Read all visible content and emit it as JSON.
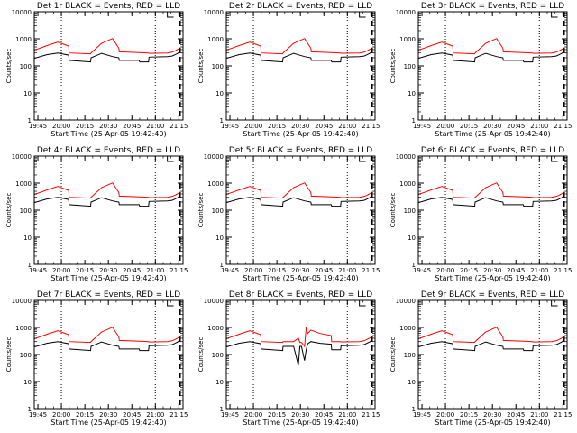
{
  "common": {
    "xlabel": "Start Time (25-Apr-05 19:42:40)",
    "ylabel": "Counts/sec",
    "xticks": [
      "19:45",
      "20:00",
      "20:15",
      "20:30",
      "20:45",
      "21:00",
      "21:15"
    ],
    "yticks": [
      "1",
      "10",
      "100",
      "1000",
      "10000"
    ],
    "colors": {
      "events": "#000000",
      "lld": "#ff0000"
    }
  },
  "chart_data": [
    {
      "type": "line",
      "title": "Det 1r BLACK = Events, RED = LLD",
      "xlabel": "Start Time (25-Apr-05 19:42:40)",
      "ylabel": "Counts/sec",
      "yscale": "log",
      "ylim": [
        1,
        10000
      ],
      "xlim_minutes": [
        0,
        95
      ],
      "x_minutes": [
        0,
        8,
        15,
        22,
        22.3,
        36,
        36.3,
        43,
        50,
        54,
        54.3,
        67,
        67.3,
        73,
        73.3,
        85,
        88,
        90,
        92,
        93
      ],
      "series": [
        {
          "name": "BLACK = Events",
          "values": [
            190,
            260,
            300,
            250,
            160,
            140,
            200,
            290,
            220,
            200,
            160,
            160,
            140,
            140,
            210,
            220,
            230,
            260,
            300,
            370
          ]
        },
        {
          "name": "RED = LLD",
          "values": [
            380,
            560,
            750,
            540,
            300,
            280,
            300,
            680,
            1020,
            450,
            330,
            310,
            310,
            300,
            290,
            300,
            320,
            360,
            420,
            480
          ]
        }
      ]
    },
    {
      "type": "line",
      "title": "Det 2r BLACK = Events, RED = LLD",
      "xlabel": "Start Time (25-Apr-05 19:42:40)",
      "ylabel": "Counts/sec",
      "yscale": "log",
      "ylim": [
        1,
        10000
      ],
      "xlim_minutes": [
        0,
        95
      ],
      "x_minutes": [
        0,
        8,
        15,
        22,
        22.3,
        36,
        36.3,
        43,
        50,
        54,
        54.3,
        67,
        67.3,
        73,
        73.3,
        85,
        88,
        90,
        92,
        93
      ],
      "series": [
        {
          "name": "BLACK = Events",
          "values": [
            190,
            260,
            300,
            250,
            160,
            140,
            200,
            290,
            220,
            200,
            160,
            160,
            140,
            140,
            210,
            220,
            230,
            260,
            300,
            370
          ]
        },
        {
          "name": "RED = LLD",
          "values": [
            380,
            560,
            750,
            540,
            300,
            280,
            300,
            680,
            1020,
            450,
            330,
            310,
            310,
            300,
            290,
            300,
            320,
            360,
            420,
            480
          ]
        }
      ]
    },
    {
      "type": "line",
      "title": "Det 3r BLACK = Events, RED = LLD",
      "xlabel": "Start Time (25-Apr-05 19:42:40)",
      "ylabel": "Counts/sec",
      "yscale": "log",
      "ylim": [
        1,
        10000
      ],
      "xlim_minutes": [
        0,
        95
      ],
      "x_minutes": [
        0,
        8,
        15,
        22,
        22.3,
        36,
        36.3,
        43,
        50,
        54,
        54.3,
        67,
        67.3,
        73,
        73.3,
        85,
        88,
        90,
        92,
        93
      ],
      "series": [
        {
          "name": "BLACK = Events",
          "values": [
            190,
            260,
            300,
            250,
            160,
            140,
            200,
            290,
            220,
            200,
            160,
            160,
            140,
            140,
            210,
            220,
            230,
            260,
            300,
            370
          ]
        },
        {
          "name": "RED = LLD",
          "values": [
            380,
            560,
            750,
            540,
            300,
            280,
            300,
            680,
            1020,
            450,
            330,
            310,
            310,
            300,
            290,
            300,
            320,
            360,
            420,
            480
          ]
        }
      ]
    },
    {
      "type": "line",
      "title": "Det 4r BLACK = Events, RED = LLD",
      "xlabel": "Start Time (25-Apr-05 19:42:40)",
      "ylabel": "Counts/sec",
      "yscale": "log",
      "ylim": [
        1,
        10000
      ],
      "xlim_minutes": [
        0,
        95
      ],
      "x_minutes": [
        0,
        8,
        15,
        22,
        22.3,
        36,
        36.3,
        43,
        50,
        54,
        54.3,
        67,
        67.3,
        73,
        73.3,
        85,
        88,
        90,
        92,
        93
      ],
      "series": [
        {
          "name": "BLACK = Events",
          "values": [
            190,
            260,
            300,
            250,
            160,
            140,
            200,
            290,
            220,
            200,
            160,
            160,
            140,
            140,
            210,
            220,
            230,
            260,
            300,
            370
          ]
        },
        {
          "name": "RED = LLD",
          "values": [
            380,
            560,
            750,
            540,
            300,
            280,
            300,
            680,
            1020,
            450,
            330,
            310,
            310,
            300,
            290,
            300,
            320,
            360,
            420,
            480
          ]
        }
      ]
    },
    {
      "type": "line",
      "title": "Det 5r BLACK = Events, RED = LLD",
      "xlabel": "Start Time (25-Apr-05 19:42:40)",
      "ylabel": "Counts/sec",
      "yscale": "log",
      "ylim": [
        1,
        10000
      ],
      "xlim_minutes": [
        0,
        95
      ],
      "x_minutes": [
        0,
        8,
        15,
        22,
        22.3,
        36,
        36.3,
        43,
        50,
        54,
        54.3,
        67,
        67.3,
        73,
        73.3,
        85,
        88,
        90,
        92,
        93
      ],
      "series": [
        {
          "name": "BLACK = Events",
          "values": [
            190,
            260,
            300,
            250,
            160,
            140,
            200,
            290,
            220,
            200,
            160,
            160,
            140,
            140,
            210,
            220,
            230,
            260,
            300,
            370
          ]
        },
        {
          "name": "RED = LLD",
          "values": [
            380,
            560,
            750,
            540,
            300,
            280,
            300,
            680,
            1020,
            450,
            330,
            310,
            310,
            300,
            290,
            300,
            320,
            360,
            420,
            480
          ]
        }
      ]
    },
    {
      "type": "line",
      "title": "Det 6r BLACK = Events, RED = LLD",
      "xlabel": "Start Time (25-Apr-05 19:42:40)",
      "ylabel": "Counts/sec",
      "yscale": "log",
      "ylim": [
        1,
        10000
      ],
      "xlim_minutes": [
        0,
        95
      ],
      "x_minutes": [
        0,
        8,
        15,
        22,
        22.3,
        36,
        36.3,
        43,
        50,
        54,
        54.3,
        67,
        67.3,
        73,
        73.3,
        85,
        88,
        90,
        92,
        93
      ],
      "series": [
        {
          "name": "BLACK = Events",
          "values": [
            190,
            260,
            300,
            250,
            160,
            140,
            200,
            290,
            220,
            200,
            160,
            160,
            140,
            140,
            210,
            220,
            230,
            260,
            300,
            370
          ]
        },
        {
          "name": "RED = LLD",
          "values": [
            380,
            560,
            750,
            540,
            300,
            280,
            300,
            680,
            1020,
            450,
            330,
            310,
            310,
            300,
            290,
            300,
            320,
            360,
            420,
            480
          ]
        }
      ]
    },
    {
      "type": "line",
      "title": "Det 7r BLACK = Events, RED = LLD",
      "xlabel": "Start Time (25-Apr-05 19:42:40)",
      "ylabel": "Counts/sec",
      "yscale": "log",
      "ylim": [
        1,
        10000
      ],
      "xlim_minutes": [
        0,
        95
      ],
      "x_minutes": [
        0,
        8,
        15,
        22,
        22.3,
        36,
        36.3,
        43,
        50,
        54,
        54.3,
        67,
        67.3,
        73,
        73.3,
        85,
        88,
        90,
        92,
        93
      ],
      "series": [
        {
          "name": "BLACK = Events",
          "values": [
            190,
            260,
            300,
            250,
            160,
            140,
            200,
            290,
            220,
            200,
            160,
            160,
            140,
            140,
            210,
            220,
            230,
            260,
            300,
            370
          ]
        },
        {
          "name": "RED = LLD",
          "values": [
            380,
            560,
            750,
            540,
            300,
            280,
            300,
            680,
            1020,
            450,
            330,
            310,
            310,
            300,
            290,
            300,
            320,
            360,
            420,
            480
          ]
        }
      ]
    },
    {
      "type": "line",
      "title": "Det 8r BLACK = Events, RED = LLD",
      "xlabel": "Start Time (25-Apr-05 19:42:40)",
      "ylabel": "Counts/sec",
      "yscale": "log",
      "ylim": [
        1,
        10000
      ],
      "xlim_minutes": [
        0,
        95
      ],
      "x_minutes": [
        0,
        8,
        15,
        22,
        22.3,
        36,
        36.3,
        43,
        46,
        47,
        48,
        50,
        51,
        52,
        54,
        60,
        67,
        67.3,
        73,
        73.3,
        85,
        88,
        92,
        93
      ],
      "series": [
        {
          "name": "BLACK = Events",
          "values": [
            190,
            260,
            300,
            250,
            160,
            140,
            200,
            200,
            40,
            200,
            200,
            60,
            150,
            250,
            300,
            260,
            240,
            150,
            150,
            210,
            220,
            230,
            300,
            370
          ]
        },
        {
          "name": "RED = LLD",
          "values": [
            380,
            560,
            750,
            540,
            300,
            280,
            300,
            300,
            400,
            280,
            280,
            200,
            1000,
            600,
            800,
            600,
            500,
            300,
            300,
            290,
            300,
            320,
            420,
            480
          ]
        }
      ]
    },
    {
      "type": "line",
      "title": "Det 9r BLACK = Events, RED = LLD",
      "xlabel": "Start Time (25-Apr-05 19:42:40)",
      "ylabel": "Counts/sec",
      "yscale": "log",
      "ylim": [
        1,
        10000
      ],
      "xlim_minutes": [
        0,
        95
      ],
      "x_minutes": [
        0,
        8,
        15,
        22,
        22.3,
        36,
        36.3,
        43,
        50,
        54,
        54.3,
        67,
        67.3,
        73,
        73.3,
        85,
        88,
        90,
        92,
        93
      ],
      "series": [
        {
          "name": "BLACK = Events",
          "values": [
            190,
            260,
            300,
            250,
            160,
            140,
            200,
            290,
            220,
            200,
            160,
            160,
            140,
            140,
            210,
            220,
            230,
            260,
            300,
            370
          ]
        },
        {
          "name": "RED = LLD",
          "values": [
            380,
            560,
            750,
            540,
            300,
            280,
            300,
            680,
            1020,
            450,
            330,
            310,
            310,
            300,
            290,
            300,
            320,
            360,
            420,
            480
          ]
        }
      ]
    }
  ],
  "markers_minutes": {
    "dotted": [
      17.3,
      77.3
    ],
    "dashed": [
      93
    ]
  }
}
